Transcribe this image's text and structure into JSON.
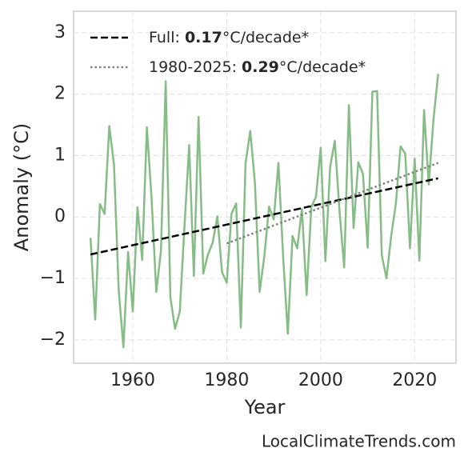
{
  "chart_data": {
    "type": "line",
    "xlabel": "Year",
    "ylabel": "Anomaly (°C)",
    "source": "LocalClimateTrends.com",
    "x": [
      1951,
      1952,
      1953,
      1954,
      1955,
      1956,
      1957,
      1958,
      1959,
      1960,
      1961,
      1962,
      1963,
      1964,
      1965,
      1966,
      1967,
      1968,
      1969,
      1970,
      1971,
      1972,
      1973,
      1974,
      1975,
      1976,
      1977,
      1978,
      1979,
      1980,
      1981,
      1982,
      1983,
      1984,
      1985,
      1986,
      1987,
      1988,
      1989,
      1990,
      1991,
      1992,
      1993,
      1994,
      1995,
      1996,
      1997,
      1998,
      1999,
      2000,
      2001,
      2002,
      2003,
      2004,
      2005,
      2006,
      2007,
      2008,
      2009,
      2010,
      2011,
      2012,
      2013,
      2014,
      2015,
      2016,
      2017,
      2018,
      2019,
      2020,
      2021,
      2022,
      2023,
      2024,
      2025
    ],
    "series": [
      {
        "color": "#86bc86",
        "values": [
          -0.34,
          -1.67,
          0.21,
          0.05,
          1.48,
          0.85,
          -1.19,
          -2.12,
          -0.57,
          -1.54,
          0.16,
          -0.7,
          1.46,
          0.3,
          -1.22,
          -0.55,
          2.21,
          -1.31,
          -1.82,
          -1.54,
          -0.16,
          1.17,
          -0.96,
          1.63,
          -0.92,
          -0.61,
          -0.42,
          0.01,
          -0.9,
          -1.07,
          0.05,
          0.22,
          -1.8,
          0.87,
          1.4,
          0.55,
          -1.22,
          -0.64,
          0.17,
          -0.04,
          0.88,
          -0.64,
          -1.9,
          -0.31,
          -0.51,
          0.13,
          -1.27,
          0.16,
          0.33,
          1.13,
          -0.72,
          0.81,
          1.24,
          0.1,
          -0.82,
          1.82,
          -0.18,
          0.89,
          0.7,
          -0.5,
          2.04,
          2.05,
          -0.62,
          -1.0,
          -0.31,
          0.22,
          1.15,
          1.03,
          -0.51,
          0.95,
          -0.71,
          1.74,
          0.53,
          1.58,
          2.33
        ]
      }
    ],
    "trends": [
      {
        "name_prefix": "Full: ",
        "name_bold": "0.17",
        "name_suffix": "°C/decade*",
        "color": "#000000",
        "dash": "dashed",
        "x": [
          1951,
          2025
        ],
        "values": [
          -0.61,
          0.63
        ]
      },
      {
        "name_prefix": "1980-2025: ",
        "name_bold": "0.29",
        "name_suffix": "°C/decade*",
        "color": "#808080",
        "dash": "dotted",
        "x": [
          1980,
          2025
        ],
        "values": [
          -0.43,
          0.88
        ]
      }
    ],
    "xlim": [
      1947.4,
      2028.8
    ],
    "ylim": [
      -2.38,
      3.35
    ],
    "xticks": [
      1960,
      1980,
      2000,
      2020
    ],
    "yticks": [
      {
        "value": -2,
        "label": "−2"
      },
      {
        "value": -1,
        "label": "−1"
      },
      0,
      1,
      2,
      3
    ],
    "grid": true,
    "legend": "upper left"
  }
}
